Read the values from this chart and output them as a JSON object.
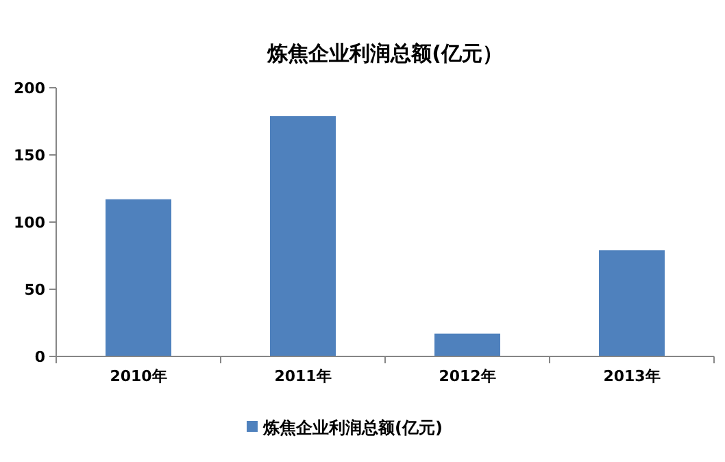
{
  "chart_data": {
    "type": "bar",
    "title": "炼焦企业利润总额(亿元）",
    "categories": [
      "2010年",
      "2011年",
      "2012年",
      "2013年"
    ],
    "series": [
      {
        "name": "炼焦企业利润总额(亿元)",
        "color": "#4f81bd",
        "values": [
          117,
          179,
          17,
          79
        ]
      }
    ],
    "ylim": [
      0,
      200
    ],
    "yticks": [
      0,
      50,
      100,
      150,
      200
    ],
    "grid": false,
    "legend": "bottom"
  }
}
